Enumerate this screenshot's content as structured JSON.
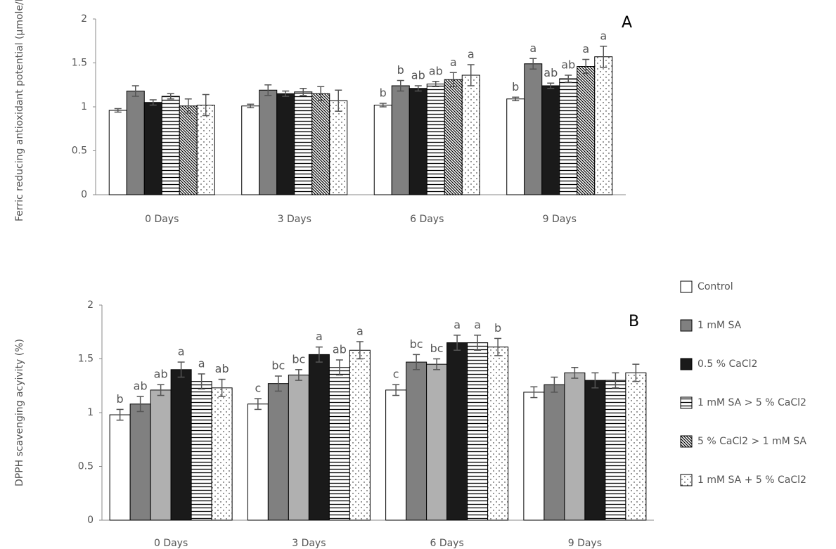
{
  "chart_data": [
    {
      "type": "bar",
      "panel_label": "A",
      "y_label": "Ferric reducing antioxidant potential (µmole/L)",
      "categories": [
        "0 Days",
        "3 Days",
        "6 Days",
        "9 Days"
      ],
      "ylim": [
        0,
        2
      ],
      "yticks": [
        0,
        0.5,
        1,
        1.5,
        2
      ],
      "series": [
        {
          "name": "Control",
          "color": "#ffffff",
          "pattern": "solid",
          "values": [
            0.96,
            1.01,
            1.02,
            1.09
          ],
          "errors": [
            0.02,
            0.02,
            0.02,
            0.02
          ],
          "letters": [
            null,
            null,
            "b",
            "b"
          ]
        },
        {
          "name": "1 mM SA",
          "color": "#808080",
          "pattern": "solid",
          "values": [
            1.18,
            1.19,
            1.24,
            1.49
          ],
          "errors": [
            0.06,
            0.06,
            0.06,
            0.06
          ],
          "letters": [
            null,
            null,
            "b",
            "a"
          ]
        },
        {
          "name": "0.5 % CaCl2",
          "color": "#1a1a1a",
          "pattern": "solid",
          "values": [
            1.05,
            1.15,
            1.21,
            1.24
          ],
          "errors": [
            0.03,
            0.03,
            0.03,
            0.03
          ],
          "letters": [
            null,
            null,
            "ab",
            "ab"
          ]
        },
        {
          "name": "1 mM SA > 5 % CaCl2",
          "color": "#000000",
          "pattern": "hstripes",
          "values": [
            1.12,
            1.17,
            1.26,
            1.32
          ],
          "errors": [
            0.03,
            0.04,
            0.03,
            0.04
          ],
          "letters": [
            null,
            null,
            "ab",
            "ab"
          ]
        },
        {
          "name": "5 % CaCl2 > 1 mM SA",
          "color": "#000000",
          "pattern": "diagonal",
          "values": [
            1.01,
            1.15,
            1.31,
            1.46
          ],
          "errors": [
            0.08,
            0.08,
            0.08,
            0.08
          ],
          "letters": [
            null,
            null,
            "a",
            "a"
          ]
        },
        {
          "name": "1 mM SA + 5 % CaCl2",
          "color": "#000000",
          "pattern": "dots",
          "values": [
            1.02,
            1.07,
            1.36,
            1.57
          ],
          "errors": [
            0.12,
            0.12,
            0.12,
            0.12
          ],
          "letters": [
            null,
            null,
            "a",
            "a"
          ]
        }
      ]
    },
    {
      "type": "bar",
      "panel_label": "B",
      "y_label": "DPPH scavenging acyivity (%)",
      "categories": [
        "0 Days",
        "3 Days",
        "6 Days",
        "9 Days"
      ],
      "ylim": [
        0,
        2
      ],
      "yticks": [
        0,
        0.5,
        1,
        1.5,
        2
      ],
      "series": [
        {
          "color": "#ffffff",
          "pattern": "solid",
          "values": [
            0.98,
            1.08,
            1.21,
            1.19
          ],
          "errors": [
            0.05,
            0.05,
            0.05,
            0.05
          ],
          "letters": [
            "b",
            "c",
            "c",
            null
          ]
        },
        {
          "color": "#808080",
          "pattern": "solid",
          "values": [
            1.08,
            1.27,
            1.47,
            1.26
          ],
          "errors": [
            0.07,
            0.07,
            0.07,
            0.07
          ],
          "letters": [
            "ab",
            "bc",
            "bc",
            null
          ]
        },
        {
          "color": "#b0b0b0",
          "pattern": "solid",
          "values": [
            1.21,
            1.35,
            1.45,
            1.37
          ],
          "errors": [
            0.05,
            0.05,
            0.05,
            0.05
          ],
          "letters": [
            "ab",
            "bc",
            "bc",
            null
          ]
        },
        {
          "color": "#1a1a1a",
          "pattern": "solid",
          "values": [
            1.4,
            1.54,
            1.65,
            1.3
          ],
          "errors": [
            0.07,
            0.07,
            0.07,
            0.07
          ],
          "letters": [
            "a",
            "a",
            "a",
            null
          ]
        },
        {
          "color": "#000000",
          "pattern": "hstripes",
          "values": [
            1.29,
            1.42,
            1.65,
            1.3
          ],
          "errors": [
            0.07,
            0.07,
            0.07,
            0.07
          ],
          "letters": [
            "a",
            "ab",
            "a",
            null
          ]
        },
        {
          "color": "#000000",
          "pattern": "dots",
          "values": [
            1.23,
            1.58,
            1.61,
            1.37
          ],
          "errors": [
            0.08,
            0.08,
            0.08,
            0.08
          ],
          "letters": [
            "ab",
            "a",
            "b",
            null
          ]
        }
      ]
    }
  ]
}
